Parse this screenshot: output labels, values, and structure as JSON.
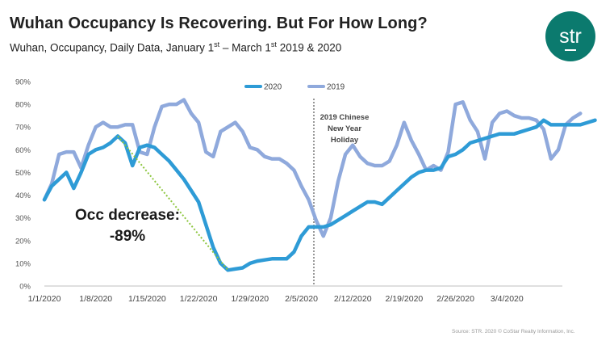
{
  "header": {
    "title": "Wuhan Occupancy Is Recovering.  But For How Long?",
    "subtitle_pre": "Wuhan, Occupancy, Daily Data, January 1",
    "subtitle_sup1": "st",
    "subtitle_mid": " – March 1",
    "subtitle_sup2": "st",
    "subtitle_post": " 2019 & 2020",
    "logo_text": "str"
  },
  "footer": {
    "source": "Source: STR. 2020 © CoStar Realty Information, Inc."
  },
  "chart_data": {
    "type": "line",
    "title": "",
    "xlabel": "",
    "ylabel": "",
    "ylim": [
      0,
      90
    ],
    "ytick_labels": [
      "0%",
      "10%",
      "20%",
      "30%",
      "40%",
      "50%",
      "60%",
      "70%",
      "80%",
      "90%"
    ],
    "xtick_labels": [
      "1/1/2020",
      "1/8/2020",
      "1/15/2020",
      "1/22/2020",
      "1/29/2020",
      "2/5/2020",
      "2/12/2020",
      "2/19/2020",
      "2/26/2020",
      "3/4/2020"
    ],
    "legend_position": "top-center",
    "grid": "horizontal",
    "series": [
      {
        "name": "2020",
        "color": "#2e9bd6",
        "values": [
          38,
          44,
          47,
          50,
          43,
          50,
          58,
          60,
          61,
          63,
          66,
          63,
          53,
          61,
          62,
          61,
          58,
          55,
          51,
          47,
          42,
          37,
          27,
          17,
          10,
          7,
          7.5,
          8,
          10,
          11,
          11.5,
          12,
          12,
          12,
          15,
          22,
          26,
          26,
          26,
          27,
          29,
          31,
          33,
          35,
          37,
          37,
          36,
          39,
          42,
          45,
          48,
          50,
          51,
          51,
          52,
          57,
          58,
          60,
          63,
          64,
          65,
          66,
          67,
          67,
          67,
          68,
          69,
          70,
          73,
          71,
          71,
          71,
          71,
          71,
          72,
          73
        ]
      },
      {
        "name": "2019",
        "color": "#8fa9dc",
        "values": [
          38,
          45,
          58,
          59,
          59,
          52,
          62,
          70,
          72,
          70,
          70,
          71,
          71,
          59,
          58,
          70,
          79,
          80,
          80,
          82,
          76,
          72,
          59,
          57,
          68,
          70,
          72,
          68,
          61,
          60,
          57,
          56,
          56,
          54,
          51,
          44,
          38,
          29,
          22,
          30,
          46,
          58,
          62,
          57,
          54,
          53,
          53,
          55,
          62,
          72,
          64,
          58,
          51,
          53,
          51,
          59,
          80,
          81,
          73,
          68,
          56,
          72,
          76,
          77,
          75,
          74,
          74,
          73,
          69,
          56,
          60,
          71,
          74,
          76
        ]
      }
    ],
    "annotations": [
      {
        "text": "2019 Chinese New Year Holiday",
        "lines": [
          "2019 Chinese",
          "New Year",
          "Holiday"
        ],
        "x_day": 38
      },
      {
        "text": "Occ decrease: -89%",
        "lines": [
          "Occ decrease:",
          "-89%"
        ],
        "from": [
          10,
          66
        ],
        "to": [
          25,
          7
        ]
      }
    ]
  }
}
